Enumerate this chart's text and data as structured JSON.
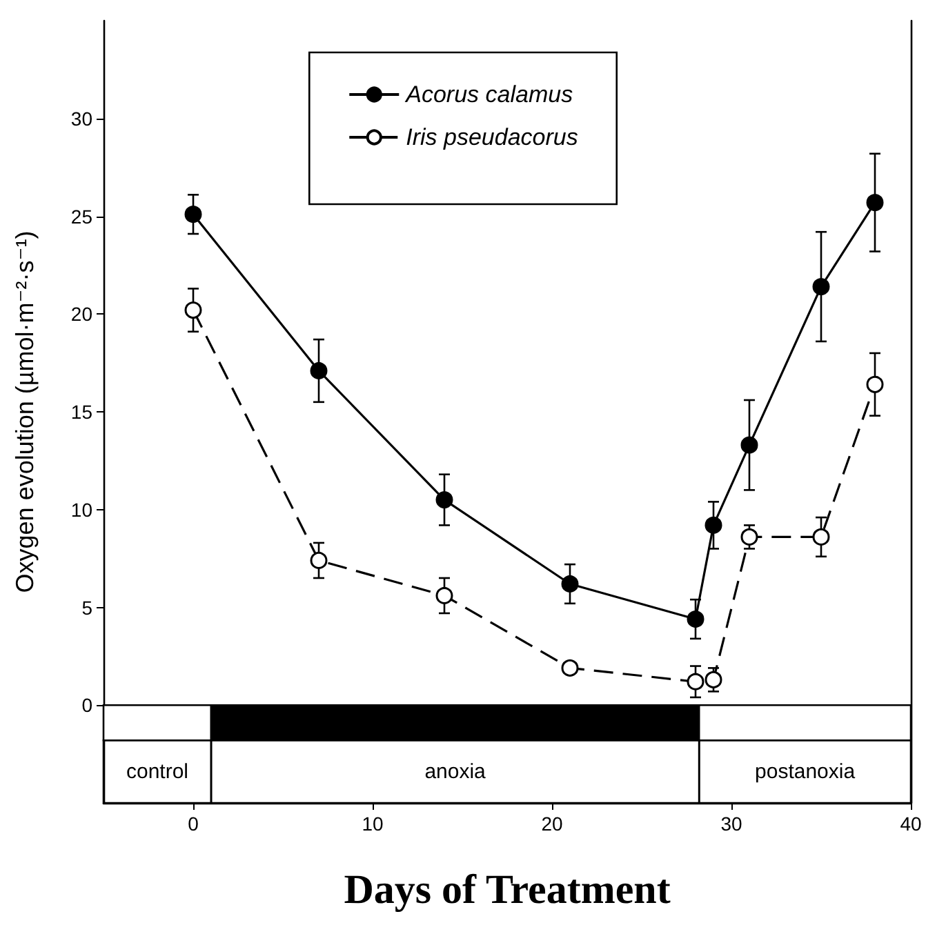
{
  "chart_data": {
    "type": "line",
    "xlabel": "Days of Treatment",
    "ylabel": "Oxygen evolution (µmol·m⁻²·s⁻¹)",
    "x": [
      0,
      7,
      14,
      21,
      28,
      29,
      31,
      35,
      38
    ],
    "series": [
      {
        "name": "Acorus calamus",
        "color": "#000000",
        "marker": "circle",
        "line_style": "solid",
        "values": [
          25.1,
          17.1,
          10.5,
          6.2,
          4.4,
          9.2,
          13.3,
          21.4,
          25.7
        ],
        "errors": [
          1.0,
          1.6,
          1.3,
          1.0,
          1.0,
          1.2,
          2.3,
          2.8,
          2.5
        ]
      },
      {
        "name": "Iris pseudacorus",
        "color": "#000000",
        "marker": "circle",
        "line_style": "dashed",
        "values": [
          20.2,
          7.4,
          5.6,
          1.9,
          1.2,
          1.3,
          8.6,
          8.6,
          16.4
        ],
        "errors": [
          1.1,
          0.9,
          0.9,
          null,
          0.8,
          0.6,
          0.6,
          1.0,
          1.6
        ]
      }
    ],
    "xlim": [
      -5,
      40
    ],
    "xticks": [
      0,
      10,
      20,
      30,
      40
    ],
    "ylim": [
      -5,
      35
    ],
    "yticks": [
      0,
      5,
      10,
      15,
      20,
      25,
      30
    ],
    "bands": [
      {
        "axis": "x",
        "from": -5,
        "to": 1,
        "label": "control",
        "color": "#ffffff"
      },
      {
        "axis": "x",
        "from": 1,
        "to": 28.2,
        "label": "anoxia",
        "color": "#000000"
      },
      {
        "axis": "x",
        "from": 28.2,
        "to": 40,
        "label": "postanoxia",
        "color": "#ffffff"
      }
    ],
    "grid": false,
    "legend": "top"
  }
}
